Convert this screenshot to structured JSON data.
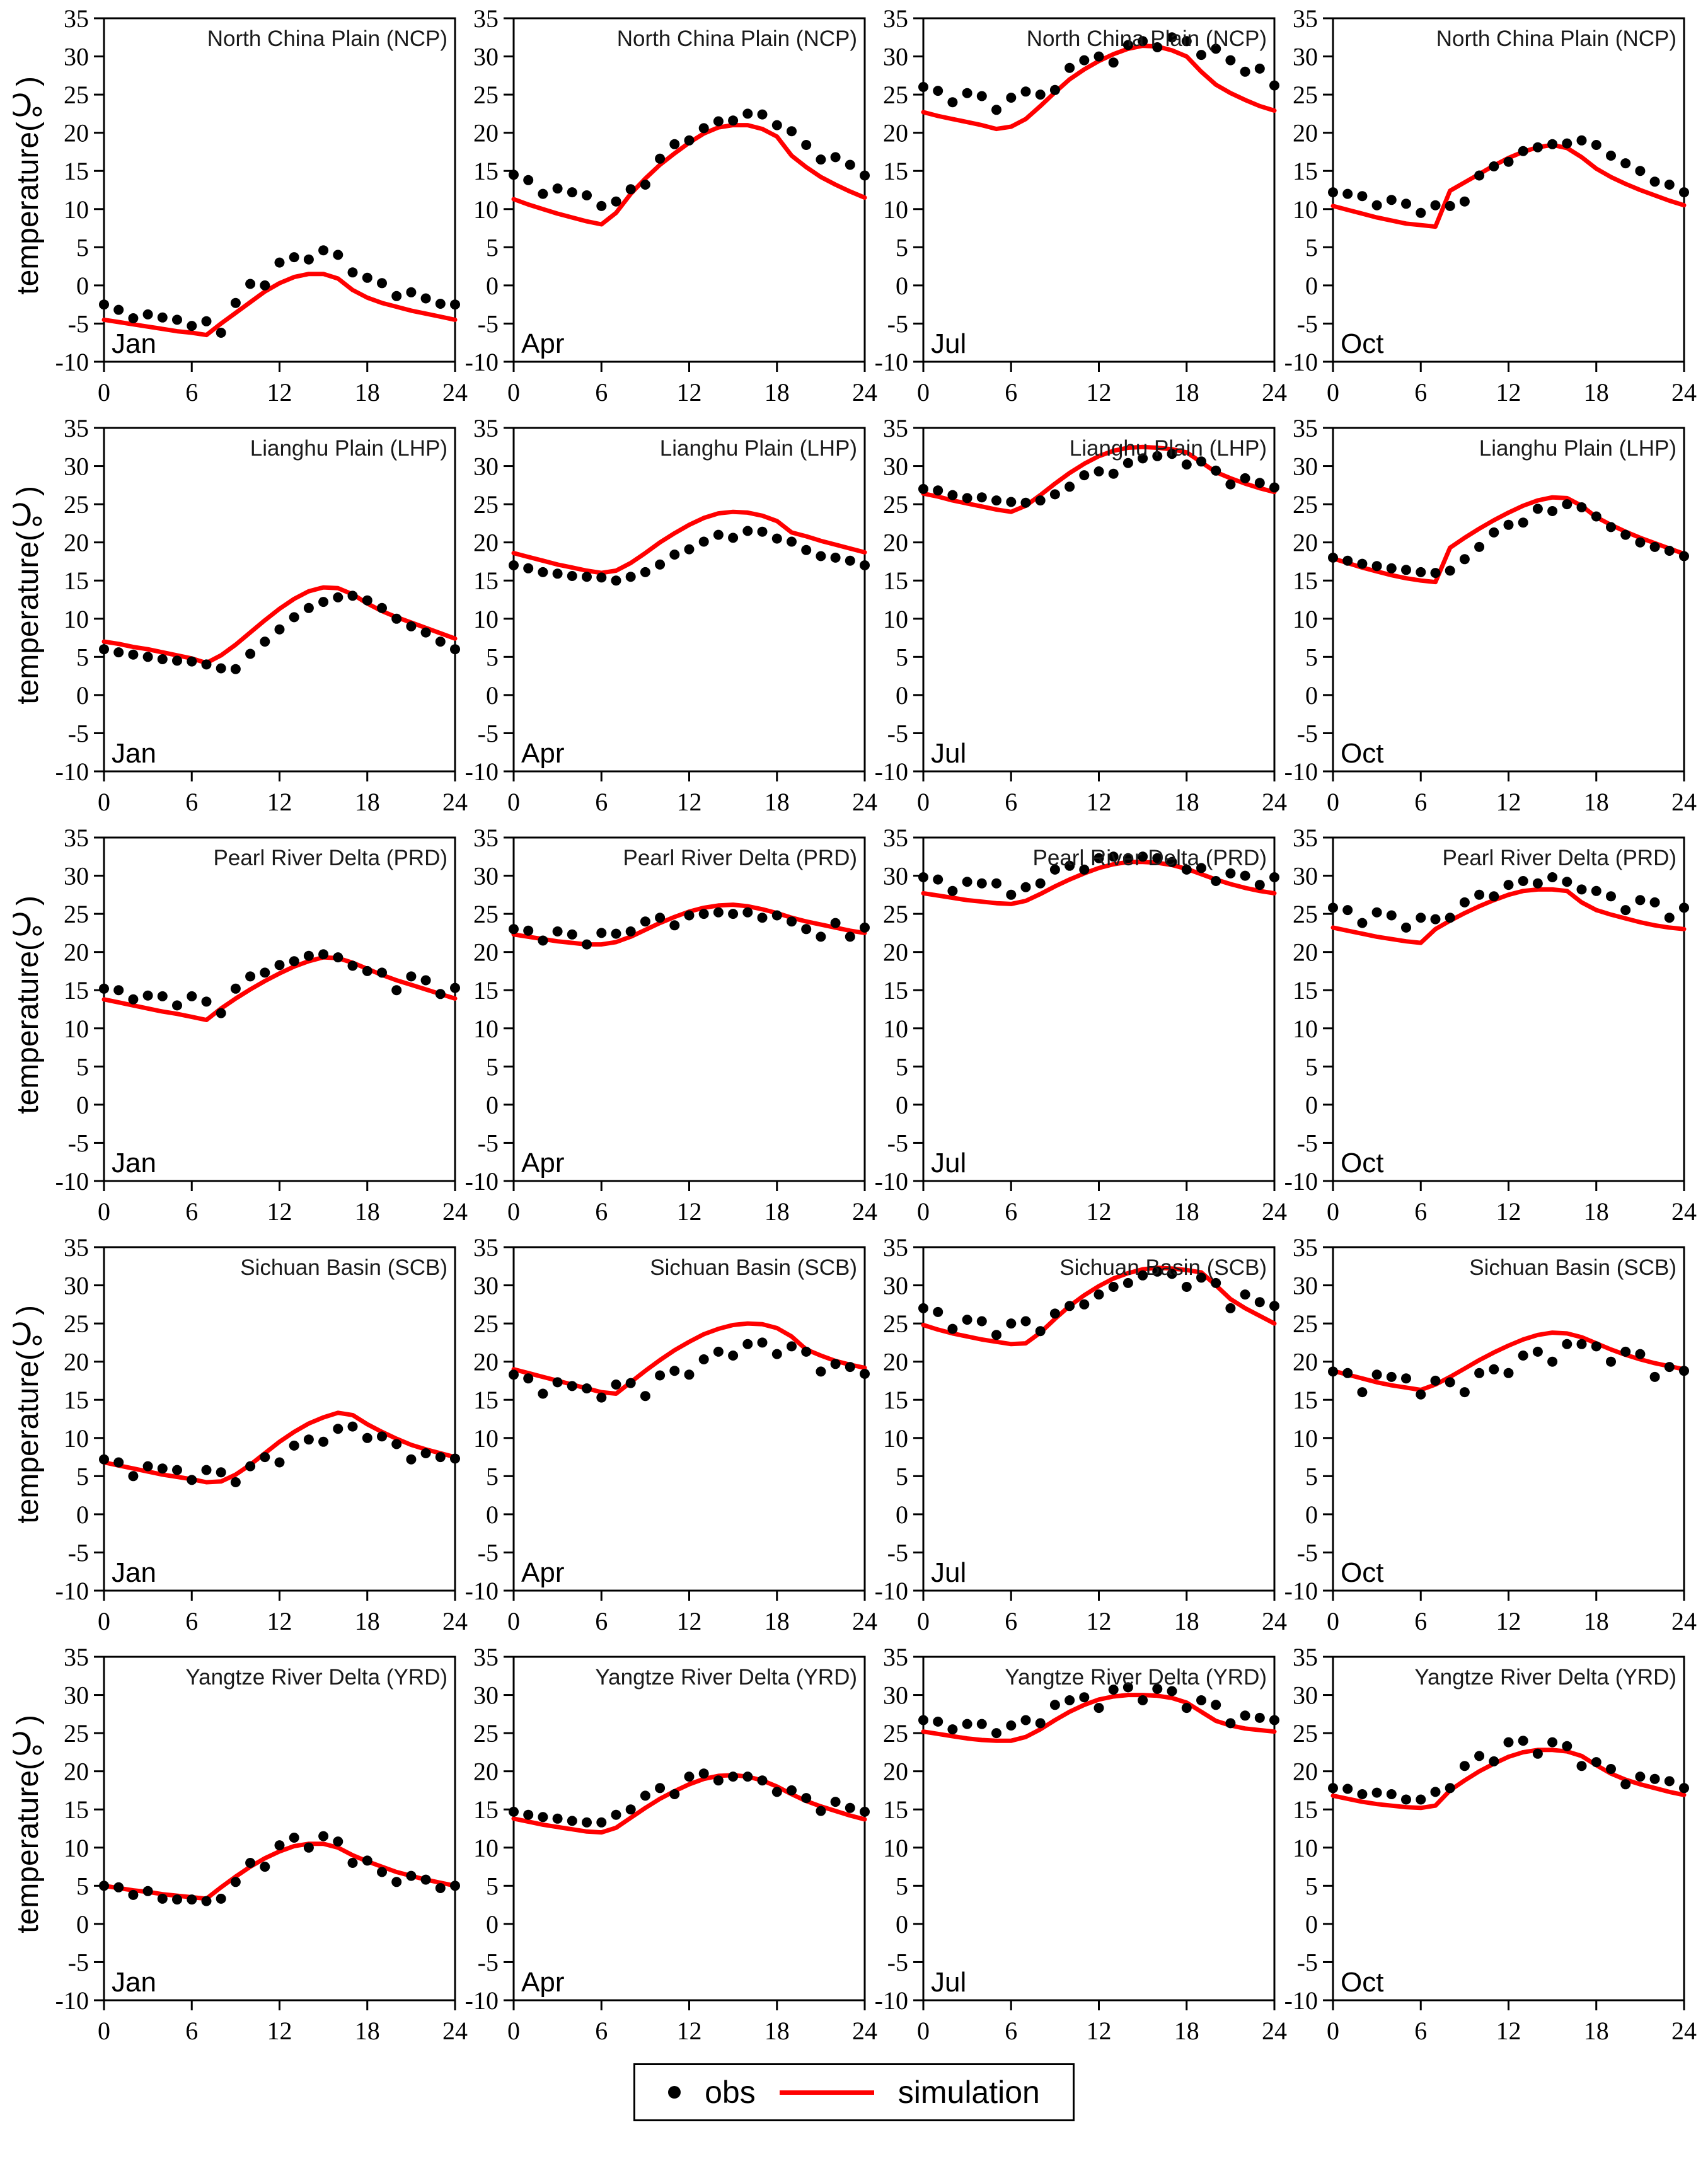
{
  "figure": {
    "ylabel": "temperature(℃)",
    "x_hours": [
      0,
      1,
      2,
      3,
      4,
      5,
      6,
      7,
      8,
      9,
      10,
      11,
      12,
      13,
      14,
      15,
      16,
      17,
      18,
      19,
      20,
      21,
      22,
      23,
      24
    ],
    "x_ticks": [
      0,
      6,
      12,
      18,
      24
    ],
    "y_ticks": [
      -10,
      -5,
      0,
      5,
      10,
      15,
      20,
      25,
      30,
      35
    ],
    "xlim": [
      0,
      24
    ],
    "ylim": [
      -10,
      35
    ],
    "grid": "off",
    "colors": {
      "obs": "#000000",
      "simulation": "#ff0000",
      "axis": "#000000",
      "title_text": "#1a1a1a"
    }
  },
  "legend": {
    "position": "bottom-center",
    "items": [
      {
        "label": "obs",
        "marker": "dot"
      },
      {
        "label": "simulation",
        "marker": "line"
      }
    ]
  },
  "chart_data": [
    {
      "type": "line+scatter",
      "title": "North China Plain (NCP)",
      "region_abbr": "NCP",
      "month": "Jan",
      "obs": [
        -2.5,
        -3.2,
        -4.3,
        -3.8,
        -4.2,
        -4.5,
        -5.3,
        -4.7,
        -6.2,
        -2.3,
        0.2,
        0,
        3,
        3.7,
        3.4,
        4.6,
        4,
        1.7,
        1,
        0.3,
        -1.4,
        -0.9,
        -1.7,
        -2.4,
        -2.5
      ],
      "sim": [
        -4.5,
        -4.8,
        -5.1,
        -5.4,
        -5.7,
        -6,
        -6.2,
        -6.5,
        -5,
        -3.6,
        -2.2,
        -0.8,
        0.3,
        1.1,
        1.5,
        1.5,
        0.9,
        -0.6,
        -1.6,
        -2.3,
        -2.8,
        -3.3,
        -3.7,
        -4.1,
        -4.5
      ]
    },
    {
      "type": "line+scatter",
      "title": "North China Plain (NCP)",
      "region_abbr": "NCP",
      "month": "Apr",
      "obs": [
        14.5,
        13.8,
        12,
        12.7,
        12.2,
        11.8,
        10.4,
        11,
        12.6,
        13.2,
        16.6,
        18.5,
        19,
        20.6,
        21.5,
        21.6,
        22.5,
        22.4,
        21,
        20.2,
        18.4,
        16.5,
        16.8,
        15.8,
        14.4
      ],
      "sim": [
        11.3,
        10.6,
        10,
        9.4,
        8.9,
        8.4,
        8,
        9.5,
        12,
        14,
        15.8,
        17.3,
        18.7,
        19.9,
        20.7,
        21,
        21,
        20.5,
        19.5,
        17,
        15.5,
        14.2,
        13.2,
        12.3,
        11.5
      ]
    },
    {
      "type": "line+scatter",
      "title": "North China Plain (NCP)",
      "region_abbr": "NCP",
      "month": "Jul",
      "obs": [
        26,
        25.5,
        24,
        25.2,
        24.8,
        23,
        24.6,
        25.4,
        25,
        25.6,
        28.5,
        29.5,
        30,
        29.2,
        31.5,
        32,
        31.2,
        32.5,
        32,
        30.2,
        31,
        29.5,
        28,
        28.4,
        26.2
      ],
      "sim": [
        22.7,
        22.2,
        21.8,
        21.4,
        21,
        20.5,
        20.8,
        21.8,
        23.5,
        25.3,
        27,
        28.3,
        29.4,
        30.3,
        31,
        31.4,
        31.3,
        30.8,
        30,
        28,
        26.3,
        25.2,
        24.3,
        23.5,
        22.9
      ]
    },
    {
      "type": "line+scatter",
      "title": "North China Plain (NCP)",
      "region_abbr": "NCP",
      "month": "Oct",
      "obs": [
        12.2,
        12,
        11.7,
        10.5,
        11.2,
        10.7,
        9.5,
        10.5,
        10.4,
        11,
        14.4,
        15.6,
        16.2,
        17.6,
        18.1,
        18.5,
        18.6,
        19,
        18.4,
        17,
        16,
        15,
        13.6,
        13.2,
        12.2
      ],
      "sim": [
        10.4,
        9.9,
        9.4,
        8.9,
        8.5,
        8.1,
        7.9,
        7.7,
        12.4,
        13.5,
        14.6,
        15.7,
        16.7,
        17.5,
        18.1,
        18.4,
        18,
        16.8,
        15.3,
        14.2,
        13.3,
        12.5,
        11.8,
        11.1,
        10.5
      ]
    },
    {
      "type": "line+scatter",
      "title": "Lianghu Plain (LHP)",
      "region_abbr": "LHP",
      "month": "Jan",
      "obs": [
        6,
        5.6,
        5.3,
        5,
        4.7,
        4.5,
        4.4,
        4,
        3.5,
        3.4,
        5.4,
        7,
        8.6,
        10.2,
        11.4,
        12.2,
        12.8,
        13,
        12.4,
        11.4,
        10,
        9,
        8.2,
        7,
        6
      ],
      "sim": [
        7,
        6.7,
        6.3,
        6,
        5.6,
        5.2,
        4.8,
        4.2,
        5.2,
        6.6,
        8.2,
        9.8,
        11.3,
        12.6,
        13.6,
        14.1,
        14,
        13.2,
        12,
        11,
        10.2,
        9.5,
        8.8,
        8.1,
        7.4
      ]
    },
    {
      "type": "line+scatter",
      "title": "Lianghu Plain (LHP)",
      "region_abbr": "LHP",
      "month": "Apr",
      "obs": [
        17,
        16.6,
        16.1,
        15.9,
        15.6,
        15.5,
        15.4,
        15,
        15.5,
        16.1,
        17.1,
        18.4,
        19.1,
        20.1,
        21,
        20.6,
        21.5,
        21.4,
        20.5,
        20.1,
        19,
        18.2,
        18,
        17.6,
        17
      ],
      "sim": [
        18.6,
        18.1,
        17.6,
        17.1,
        16.7,
        16.3,
        16,
        16.3,
        17.3,
        18.6,
        20,
        21.2,
        22.3,
        23.2,
        23.8,
        24,
        23.9,
        23.5,
        22.8,
        21.3,
        20.8,
        20.2,
        19.7,
        19.2,
        18.7
      ]
    },
    {
      "type": "line+scatter",
      "title": "Lianghu Plain (LHP)",
      "region_abbr": "LHP",
      "month": "Jul",
      "obs": [
        27,
        26.8,
        26.2,
        25.8,
        25.9,
        25.5,
        25.3,
        25.2,
        25.5,
        26.3,
        27.3,
        28.8,
        29.3,
        29,
        30.4,
        31,
        31.3,
        31.6,
        30.2,
        30.6,
        29.4,
        27.6,
        28.4,
        27.8,
        27.2
      ],
      "sim": [
        26.4,
        26,
        25.5,
        25.1,
        24.7,
        24.3,
        24,
        24.8,
        26.2,
        27.7,
        29.1,
        30.3,
        31.3,
        32,
        32.4,
        32.5,
        32.4,
        32.2,
        31.8,
        30.5,
        29.2,
        28.4,
        27.7,
        27.1,
        26.6
      ]
    },
    {
      "type": "line+scatter",
      "title": "Lianghu Plain (LHP)",
      "region_abbr": "LHP",
      "month": "Oct",
      "obs": [
        18,
        17.6,
        17.2,
        16.9,
        16.6,
        16.4,
        16.1,
        16,
        16.3,
        17.8,
        19.4,
        21.3,
        22.3,
        22.6,
        24.4,
        24.1,
        25,
        24.6,
        23.4,
        22,
        21,
        20,
        19.4,
        18.9,
        18.2
      ],
      "sim": [
        17.9,
        17.3,
        16.7,
        16.2,
        15.7,
        15.3,
        15,
        14.8,
        19.3,
        20.6,
        21.8,
        22.9,
        23.9,
        24.8,
        25.5,
        25.9,
        25.8,
        24.8,
        23.3,
        22.3,
        21.4,
        20.6,
        19.9,
        19.2,
        18.5
      ]
    },
    {
      "type": "line+scatter",
      "title": "Pearl River Delta (PRD)",
      "region_abbr": "PRD",
      "month": "Jan",
      "obs": [
        15.2,
        15,
        13.8,
        14.3,
        14.2,
        13,
        14.2,
        13.5,
        12,
        15.2,
        16.8,
        17.3,
        18.3,
        18.8,
        19.5,
        19.7,
        19.3,
        18.2,
        17.5,
        17.3,
        15,
        16.8,
        16.3,
        14.5,
        15.3
      ],
      "sim": [
        13.8,
        13.4,
        13,
        12.6,
        12.2,
        11.9,
        11.5,
        11.1,
        12.6,
        13.9,
        15.1,
        16.2,
        17.2,
        18.1,
        18.8,
        19.3,
        19.2,
        18.6,
        17.8,
        17,
        16.3,
        15.7,
        15.1,
        14.5,
        13.9
      ]
    },
    {
      "type": "line+scatter",
      "title": "Pearl River Delta (PRD)",
      "region_abbr": "PRD",
      "month": "Apr",
      "obs": [
        23,
        22.8,
        21.5,
        22.7,
        22.3,
        21,
        22.5,
        22.4,
        22.7,
        24,
        24.5,
        23.5,
        24.8,
        25,
        25.2,
        25,
        25.2,
        24.5,
        24.8,
        24,
        23,
        22,
        23.8,
        22,
        23.2
      ],
      "sim": [
        22.3,
        22,
        21.7,
        21.4,
        21.2,
        21,
        21,
        21.3,
        22,
        22.9,
        23.8,
        24.6,
        25.3,
        25.8,
        26.1,
        26.2,
        26,
        25.6,
        25.1,
        24.5,
        24,
        23.6,
        23.2,
        22.8,
        22.5
      ]
    },
    {
      "type": "line+scatter",
      "title": "Pearl River Delta (PRD)",
      "region_abbr": "PRD",
      "month": "Jul",
      "obs": [
        29.8,
        29.5,
        28,
        29.2,
        29,
        29,
        27.5,
        28.5,
        29,
        30.8,
        31.3,
        30.8,
        32.3,
        32.5,
        32.3,
        32.5,
        32.3,
        31.8,
        30.8,
        31,
        29.3,
        30.3,
        30,
        28.8,
        29.8
      ],
      "sim": [
        27.7,
        27.4,
        27.1,
        26.8,
        26.6,
        26.4,
        26.3,
        26.7,
        27.6,
        28.6,
        29.5,
        30.3,
        31,
        31.5,
        31.8,
        31.8,
        31.7,
        31.4,
        30.9,
        30.2,
        29.5,
        28.9,
        28.4,
        28,
        27.7
      ]
    },
    {
      "type": "line+scatter",
      "title": "Pearl River Delta (PRD)",
      "region_abbr": "PRD",
      "month": "Oct",
      "obs": [
        25.8,
        25.5,
        23.8,
        25.2,
        24.8,
        23.2,
        24.5,
        24.3,
        24.5,
        26.5,
        27.5,
        27.3,
        28.8,
        29.3,
        29,
        29.8,
        29.2,
        28.2,
        28,
        27.3,
        25.5,
        26.8,
        26.5,
        24.5,
        25.8
      ],
      "sim": [
        23.2,
        22.8,
        22.4,
        22,
        21.7,
        21.4,
        21.2,
        23,
        24.1,
        25.1,
        26,
        26.8,
        27.5,
        28,
        28.2,
        28.2,
        28,
        26.5,
        25.5,
        24.9,
        24.4,
        23.9,
        23.5,
        23.2,
        23
      ]
    },
    {
      "type": "line+scatter",
      "title": "Sichuan Basin (SCB)",
      "region_abbr": "SCB",
      "month": "Jan",
      "obs": [
        7.2,
        6.8,
        5,
        6.3,
        6,
        5.8,
        4.5,
        5.8,
        5.5,
        4.2,
        6.3,
        7.5,
        6.8,
        9,
        9.8,
        9.5,
        11.2,
        11.5,
        10,
        10.2,
        9.2,
        7.2,
        8,
        7.5,
        7.3
      ],
      "sim": [
        6.8,
        6.4,
        6,
        5.6,
        5.2,
        4.9,
        4.6,
        4.2,
        4.3,
        5.2,
        6.5,
        8,
        9.5,
        10.8,
        11.9,
        12.7,
        13.3,
        13,
        11.8,
        10.8,
        9.9,
        9.1,
        8.5,
        8,
        7.5
      ]
    },
    {
      "type": "line+scatter",
      "title": "Sichuan Basin (SCB)",
      "region_abbr": "SCB",
      "month": "Apr",
      "obs": [
        18.3,
        17.8,
        15.8,
        17.3,
        16.8,
        16.5,
        15.3,
        17,
        17.2,
        15.5,
        18.2,
        18.8,
        18.3,
        20.3,
        21.3,
        20.8,
        22.3,
        22.5,
        21,
        22,
        21.3,
        18.7,
        19.7,
        19.3,
        18.4
      ],
      "sim": [
        19,
        18.5,
        18,
        17.5,
        17,
        16.5,
        16,
        15.8,
        17.3,
        18.8,
        20.2,
        21.5,
        22.6,
        23.6,
        24.3,
        24.8,
        25,
        24.9,
        24.4,
        23.3,
        21.6,
        20.8,
        20.1,
        19.6,
        19.2
      ]
    },
    {
      "type": "line+scatter",
      "title": "Sichuan Basin (SCB)",
      "region_abbr": "SCB",
      "month": "Jul",
      "obs": [
        27,
        26.5,
        24.3,
        25.5,
        25.3,
        23.5,
        25,
        25.3,
        24,
        26.3,
        27.3,
        27.5,
        28.8,
        29.8,
        30.3,
        31.3,
        31.8,
        31.5,
        29.8,
        31,
        30.3,
        27,
        28.8,
        27.8,
        27.3
      ],
      "sim": [
        24.8,
        24.2,
        23.7,
        23.3,
        22.9,
        22.6,
        22.3,
        22.4,
        23.8,
        25.6,
        27.3,
        28.7,
        29.9,
        30.9,
        31.6,
        32.1,
        32.3,
        32.2,
        32,
        31.7,
        30,
        28.2,
        27,
        26,
        25
      ]
    },
    {
      "type": "line+scatter",
      "title": "Sichuan Basin (SCB)",
      "region_abbr": "SCB",
      "month": "Oct",
      "obs": [
        18.7,
        18.5,
        16,
        18.3,
        18,
        17.8,
        15.7,
        17.5,
        17.3,
        16,
        18.5,
        19,
        18.5,
        20.8,
        21.3,
        20,
        22.3,
        22.3,
        22,
        20,
        21.3,
        21,
        18,
        19.3,
        18.8
      ],
      "sim": [
        18.8,
        18.3,
        17.8,
        17.3,
        16.9,
        16.6,
        16.3,
        17,
        18,
        19.1,
        20.2,
        21.2,
        22.1,
        22.9,
        23.5,
        23.8,
        23.7,
        23.2,
        22.4,
        21.6,
        20.9,
        20.3,
        19.8,
        19.4,
        19
      ]
    },
    {
      "type": "line+scatter",
      "title": "Yangtze River Delta (YRD)",
      "region_abbr": "YRD",
      "month": "Jan",
      "obs": [
        5,
        4.8,
        3.8,
        4.3,
        3.3,
        3.2,
        3.2,
        3,
        3.3,
        5.5,
        8,
        7.5,
        10.3,
        11.3,
        10,
        11.5,
        10.8,
        8,
        8.3,
        6.8,
        5.5,
        6.3,
        5.8,
        4.7,
        5
      ],
      "sim": [
        5,
        4.7,
        4.4,
        4.2,
        3.9,
        3.7,
        3.5,
        3.3,
        4.8,
        6.2,
        7.5,
        8.6,
        9.5,
        10.2,
        10.5,
        10.5,
        10,
        9,
        8.2,
        7.5,
        6.8,
        6.3,
        5.8,
        5.4,
        5
      ]
    },
    {
      "type": "line+scatter",
      "title": "Yangtze River Delta (YRD)",
      "region_abbr": "YRD",
      "month": "Apr",
      "obs": [
        14.7,
        14.3,
        14,
        13.8,
        13.5,
        13.3,
        13.3,
        14.3,
        15,
        16.8,
        17.8,
        17,
        19.3,
        19.7,
        18.8,
        19.3,
        19.3,
        18.8,
        17.3,
        17.5,
        16.5,
        14.8,
        16,
        15.2,
        14.7
      ],
      "sim": [
        13.8,
        13.4,
        13,
        12.7,
        12.4,
        12.1,
        12,
        12.6,
        13.9,
        15.2,
        16.4,
        17.4,
        18.3,
        19,
        19.4,
        19.5,
        19.3,
        18.8,
        18,
        17,
        16.1,
        15.4,
        14.8,
        14.2,
        13.7
      ]
    },
    {
      "type": "line+scatter",
      "title": "Yangtze River Delta (YRD)",
      "region_abbr": "YRD",
      "month": "Jul",
      "obs": [
        26.7,
        26.5,
        25.5,
        26.2,
        26.2,
        25,
        26,
        26.7,
        26.3,
        28.7,
        29.3,
        29.7,
        28.3,
        30.7,
        31,
        29.3,
        30.8,
        30.5,
        28.3,
        29.3,
        28.7,
        26.3,
        27.3,
        27,
        26.7
      ],
      "sim": [
        25.2,
        24.9,
        24.6,
        24.3,
        24.1,
        24,
        24,
        24.5,
        25.5,
        26.7,
        27.8,
        28.7,
        29.4,
        29.8,
        30,
        30,
        29.9,
        29.6,
        29,
        27.8,
        26.6,
        26,
        25.6,
        25.4,
        25.2
      ]
    },
    {
      "type": "line+scatter",
      "title": "Yangtze River Delta (YRD)",
      "region_abbr": "YRD",
      "month": "Oct",
      "obs": [
        17.8,
        17.7,
        17,
        17.2,
        17,
        16.3,
        16.3,
        17.3,
        17.8,
        20.7,
        22,
        21.3,
        23.8,
        24,
        22.3,
        23.8,
        23.3,
        20.7,
        21.2,
        20.3,
        18.3,
        19.3,
        19,
        18.7,
        17.8
      ],
      "sim": [
        16.8,
        16.4,
        16,
        15.7,
        15.5,
        15.3,
        15.2,
        15.5,
        17.5,
        18.8,
        20,
        21,
        21.9,
        22.5,
        22.8,
        22.8,
        22.6,
        22,
        20.8,
        19.7,
        18.9,
        18.3,
        17.8,
        17.3,
        16.9
      ]
    }
  ]
}
